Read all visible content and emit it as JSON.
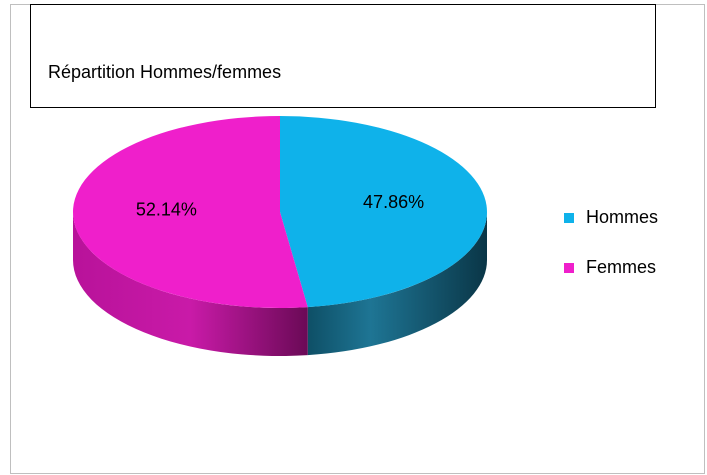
{
  "chart_data": {
    "type": "pie",
    "title": "Répartition Hommes/femmes",
    "categories": [
      "Hommes",
      "Femmes"
    ],
    "values": [
      47.86,
      52.14
    ],
    "value_labels": [
      "47.86%",
      "52.14%"
    ],
    "colors": [
      "#0fb2ea",
      "#ef1fcb"
    ],
    "legend": "right"
  }
}
